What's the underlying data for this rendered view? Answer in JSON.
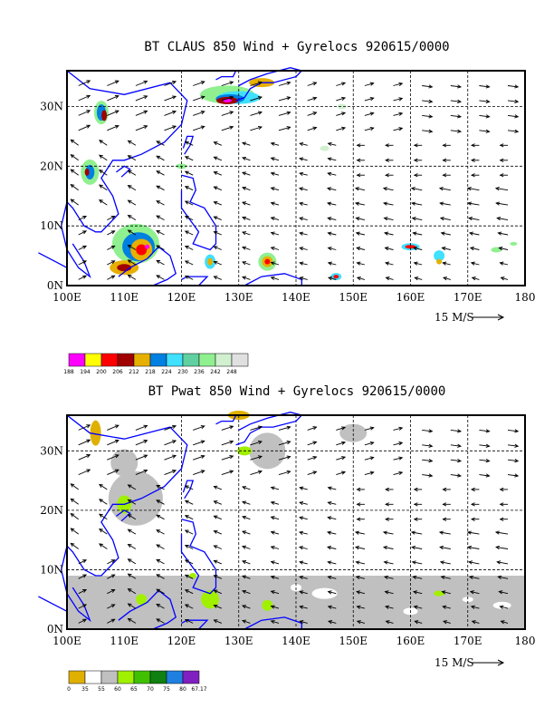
{
  "panels": [
    {
      "title": "BT CLAUS 850 Wind + Gyrelocs 920615/0000",
      "legend_labels": [
        "188",
        "194",
        "200",
        "206",
        "212",
        "218",
        "224",
        "230",
        "236",
        "242",
        "248"
      ],
      "legend_colors": [
        "#ff00ff",
        "#ffff00",
        "#ff0000",
        "#a00000",
        "#e6b000",
        "#0080e0",
        "#40e0ff",
        "#60d0a0",
        "#90f090",
        "#d0f0d0",
        "#e0e0e0"
      ]
    },
    {
      "title": "BT Pwat 850 Wind + Gyrelocs 920615/0000",
      "legend_labels": [
        "0",
        "35",
        "55",
        "60",
        "65",
        "70",
        "75",
        "80",
        "67.17"
      ],
      "legend_colors": [
        "#e0b000",
        "#ffffff",
        "#c0c0c0",
        "#a0f000",
        "#40c000",
        "#108010",
        "#2080e0",
        "#8020c0"
      ]
    }
  ],
  "axes": {
    "x_ticks": [
      "100E",
      "110E",
      "120E",
      "130E",
      "140E",
      "150E",
      "160E",
      "170E",
      "180"
    ],
    "y_ticks": [
      "0N",
      "10N",
      "20N",
      "30N"
    ],
    "x_range_deg": [
      100,
      180
    ],
    "y_range_deg": [
      0,
      36
    ]
  },
  "wind_scale_label": "15 M/S",
  "colors": {
    "coastline": "#0000ff",
    "frame": "#000000"
  }
}
